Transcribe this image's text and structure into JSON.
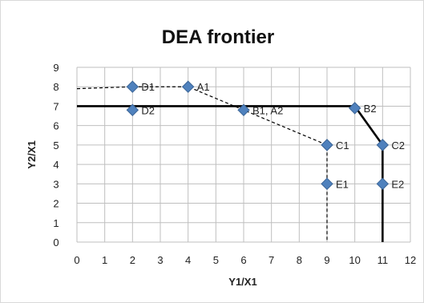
{
  "chart_data": {
    "type": "scatter",
    "title": "DEA frontier",
    "xlabel": "Y1/X1",
    "ylabel": "Y2/X1",
    "xlim": [
      0,
      12
    ],
    "ylim": [
      0,
      9
    ],
    "xticks": [
      0,
      1,
      2,
      3,
      4,
      5,
      6,
      7,
      8,
      9,
      10,
      11,
      12
    ],
    "yticks": [
      0,
      1,
      2,
      3,
      4,
      5,
      6,
      7,
      8,
      9
    ],
    "grid": true,
    "legend": "none",
    "points": [
      {
        "label": "D1",
        "x": 2,
        "y": 8
      },
      {
        "label": "A1",
        "x": 4,
        "y": 8
      },
      {
        "label": "D2",
        "x": 2,
        "y": 6.8
      },
      {
        "label": "B1, A2",
        "x": 6,
        "y": 6.8
      },
      {
        "label": "B2",
        "x": 10,
        "y": 6.9
      },
      {
        "label": "C1",
        "x": 9,
        "y": 5
      },
      {
        "label": "C2",
        "x": 11,
        "y": 5
      },
      {
        "label": "E1",
        "x": 9,
        "y": 3
      },
      {
        "label": "E2",
        "x": 11,
        "y": 3
      }
    ],
    "frontiers": [
      {
        "style": "dashed",
        "points": [
          [
            0,
            7.9
          ],
          [
            2,
            8
          ],
          [
            4,
            8
          ],
          [
            6,
            6.8
          ],
          [
            9,
            5
          ],
          [
            9,
            3
          ],
          [
            9,
            0
          ]
        ]
      },
      {
        "style": "solid",
        "points": [
          [
            0,
            7
          ],
          [
            6,
            7
          ],
          [
            10,
            7
          ],
          [
            11,
            5
          ],
          [
            11,
            3
          ],
          [
            11,
            0
          ]
        ]
      }
    ],
    "colors": {
      "marker": "#4f81bd",
      "marker_stroke": "#3a6496",
      "grid": "#bfbfbf",
      "frontier": "#000000"
    }
  }
}
